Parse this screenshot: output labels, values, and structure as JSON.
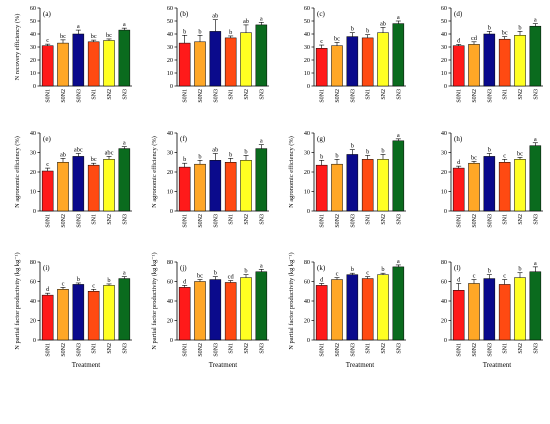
{
  "figure": {
    "xlabel": "Treatment",
    "colors": [
      "#ff1a1a",
      "#ffa726",
      "#0a0a8c",
      "#ff4a12",
      "#ffff22",
      "#0a6b1e"
    ]
  },
  "chart_data": [
    {
      "type": "bar",
      "panel": "(a)",
      "ylabel": "N recovery efficiency (%)",
      "ylim": [
        0,
        60
      ],
      "yticks": [
        0,
        10,
        20,
        30,
        40,
        50,
        60
      ],
      "categories": [
        "S0N1",
        "S0N2",
        "S0N3",
        "SN1",
        "SN2",
        "SN3"
      ],
      "values": [
        31,
        33,
        40,
        34,
        35,
        43
      ],
      "errors": [
        1.2,
        2.5,
        3.0,
        1.3,
        1.2,
        1.5
      ],
      "letters": [
        "c",
        "bc",
        "a",
        "bc",
        "bc",
        "a"
      ],
      "xlabel": ""
    },
    {
      "type": "bar",
      "panel": "(b)",
      "ylabel": "",
      "ylim": [
        0,
        60
      ],
      "yticks": [
        0,
        10,
        20,
        30,
        40,
        50,
        60
      ],
      "categories": [
        "S0N1",
        "S0N2",
        "S0N3",
        "SN1",
        "SN2",
        "SN3"
      ],
      "values": [
        33,
        34,
        42,
        37,
        41,
        47
      ],
      "errors": [
        6,
        5,
        9,
        1.5,
        6,
        2
      ],
      "letters": [
        "b",
        "b",
        "ab",
        "b",
        "ab",
        "a"
      ],
      "xlabel": ""
    },
    {
      "type": "bar",
      "panel": "(c)",
      "ylabel": "",
      "ylim": [
        0,
        60
      ],
      "yticks": [
        0,
        10,
        20,
        30,
        40,
        50,
        60
      ],
      "categories": [
        "S0N1",
        "S0N2",
        "S0N3",
        "SN1",
        "SN2",
        "SN3"
      ],
      "values": [
        29,
        31,
        38,
        37,
        41,
        48
      ],
      "errors": [
        2.5,
        2.5,
        3,
        2.5,
        4,
        2
      ],
      "letters": [
        "c",
        "bc",
        "b",
        "b",
        "ab",
        "a"
      ],
      "xlabel": ""
    },
    {
      "type": "bar",
      "panel": "(d)",
      "ylabel": "",
      "ylim": [
        0,
        60
      ],
      "yticks": [
        0,
        10,
        20,
        30,
        40,
        50,
        60
      ],
      "categories": [
        "S0N1",
        "S0N2",
        "S0N3",
        "SN1",
        "SN2",
        "SN3"
      ],
      "values": [
        31,
        32,
        40,
        36,
        39,
        46
      ],
      "errors": [
        1,
        2,
        2,
        2,
        3,
        2
      ],
      "letters": [
        "d",
        "cd",
        "b",
        "bc",
        "b",
        "a"
      ],
      "xlabel": ""
    },
    {
      "type": "bar",
      "panel": "(e)",
      "ylabel": "N agronomic efficiency (%)",
      "ylim": [
        0,
        40
      ],
      "yticks": [
        0,
        10,
        20,
        30,
        40
      ],
      "categories": [
        "S0N1",
        "S0N2",
        "S0N3",
        "SN1",
        "SN2",
        "SN3"
      ],
      "values": [
        20.5,
        25,
        28,
        23.5,
        26.5,
        32
      ],
      "errors": [
        1.5,
        2,
        1.5,
        1,
        1.5,
        1
      ],
      "letters": [
        "c",
        "ab",
        "abc",
        "bc",
        "abc",
        "a"
      ],
      "xlabel": ""
    },
    {
      "type": "bar",
      "panel": "(f)",
      "ylabel": "N agronomic efficiency (%)",
      "ylim": [
        0,
        40
      ],
      "yticks": [
        0,
        10,
        20,
        30,
        40
      ],
      "categories": [
        "S0N1",
        "S0N2",
        "S0N3",
        "SN1",
        "SN2",
        "SN3"
      ],
      "values": [
        22.5,
        24,
        26,
        25,
        26,
        32
      ],
      "errors": [
        2,
        2,
        3.5,
        2,
        2.5,
        2
      ],
      "letters": [
        "b",
        "b",
        "ab",
        "b",
        "b",
        "a"
      ],
      "xlabel": ""
    },
    {
      "type": "bar",
      "panel": "(g)",
      "ylabel": "N agronomic efficiency (%)",
      "ylim": [
        0,
        40
      ],
      "yticks": [
        0,
        10,
        20,
        30,
        40
      ],
      "categories": [
        "S0N1",
        "S0N2",
        "S0N3",
        "SN1",
        "SN2",
        "SN3"
      ],
      "values": [
        23.5,
        24,
        29,
        26.5,
        26.5,
        36
      ],
      "errors": [
        2.5,
        2.5,
        2.5,
        2,
        2.5,
        1
      ],
      "letters": [
        "b",
        "b",
        "b",
        "b",
        "b",
        "a"
      ],
      "xlabel": ""
    },
    {
      "type": "bar",
      "panel": "(h)",
      "ylabel": "",
      "ylim": [
        0,
        40
      ],
      "yticks": [
        0,
        10,
        20,
        30,
        40
      ],
      "categories": [
        "S0N1",
        "S0N2",
        "S0N3",
        "SN1",
        "SN2",
        "SN3"
      ],
      "values": [
        22,
        24.5,
        28,
        25,
        26.5,
        33.5
      ],
      "errors": [
        1,
        1,
        1.5,
        1.5,
        1,
        1.5
      ],
      "letters": [
        "d",
        "bc",
        "b",
        "c",
        "bc",
        "a"
      ],
      "xlabel": ""
    },
    {
      "type": "bar",
      "panel": "(i)",
      "ylabel": "N partial factor productivity (kg kg⁻¹)",
      "ylim": [
        0,
        80
      ],
      "yticks": [
        0,
        20,
        40,
        60,
        80
      ],
      "categories": [
        "S0N1",
        "S0N2",
        "S0N3",
        "SN1",
        "SN2",
        "SN3"
      ],
      "values": [
        46,
        52,
        57,
        50,
        56,
        63
      ],
      "errors": [
        2,
        2,
        1.5,
        2,
        1.5,
        2
      ],
      "letters": [
        "d",
        "c",
        "b",
        "c",
        "b",
        "a"
      ],
      "xlabel": "Treatment"
    },
    {
      "type": "bar",
      "panel": "(j)",
      "ylabel": "N partial factor productivity (kg kg⁻¹)",
      "ylim": [
        0,
        80
      ],
      "yticks": [
        0,
        20,
        40,
        60,
        80
      ],
      "categories": [
        "S0N1",
        "S0N2",
        "S0N3",
        "SN1",
        "SN2",
        "SN3"
      ],
      "values": [
        54,
        60,
        62,
        59,
        64,
        70
      ],
      "errors": [
        2,
        2,
        3,
        2,
        3,
        2.5
      ],
      "letters": [
        "d",
        "bc",
        "b",
        "cd",
        "b",
        "a"
      ],
      "xlabel": "Treatment"
    },
    {
      "type": "bar",
      "panel": "(k)",
      "ylabel": "N partial factor productivity (kg kg⁻¹)",
      "ylim": [
        0,
        80
      ],
      "yticks": [
        0,
        20,
        40,
        60,
        80
      ],
      "categories": [
        "S0N1",
        "S0N2",
        "S0N3",
        "SN1",
        "SN2",
        "SN3"
      ],
      "values": [
        56,
        62,
        67,
        63,
        67,
        75
      ],
      "errors": [
        2,
        2,
        1.5,
        2,
        1.5,
        2
      ],
      "letters": [
        "d",
        "c",
        "b",
        "c",
        "b",
        "a"
      ],
      "xlabel": "Treatment"
    },
    {
      "type": "bar",
      "panel": "(l)",
      "ylabel": "",
      "ylim": [
        0,
        80
      ],
      "yticks": [
        0,
        20,
        40,
        60,
        80
      ],
      "categories": [
        "S0N1",
        "S0N2",
        "S0N3",
        "SN1",
        "SN2",
        "SN3"
      ],
      "values": [
        51,
        58,
        63,
        57,
        64,
        70
      ],
      "errors": [
        7,
        4,
        4,
        5,
        5,
        5
      ],
      "letters": [
        "d",
        "c",
        "b",
        "c",
        "b",
        "a"
      ],
      "xlabel": "Treatment"
    }
  ]
}
